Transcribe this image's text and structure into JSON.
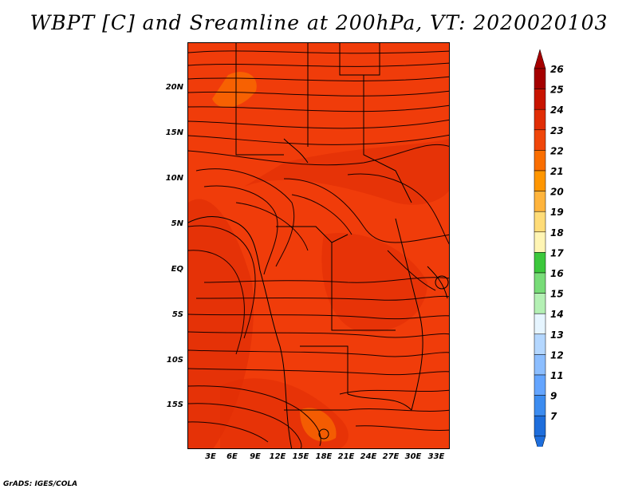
{
  "title": "WBPT [C] and Sreamline at 200hPa, VT: 2020020103",
  "credit": "GrADS: IGES/COLA",
  "map": {
    "field": "WBPT [C]",
    "overlay": "Streamline",
    "level": "200hPa",
    "valid_time": "2020020103",
    "background_color": "#f03c0a",
    "lat_labels": [
      "20N",
      "15N",
      "10N",
      "5N",
      "EQ",
      "5S",
      "10S",
      "15S"
    ],
    "lon_labels": [
      "3E",
      "6E",
      "9E",
      "12E",
      "15E",
      "18E",
      "21E",
      "24E",
      "27E",
      "30E",
      "33E"
    ]
  },
  "colorbar": {
    "labels": [
      "26",
      "25",
      "24",
      "23",
      "22",
      "21",
      "20",
      "19",
      "18",
      "17",
      "16",
      "15",
      "14",
      "13",
      "12",
      "11",
      "9",
      "7"
    ],
    "colors": [
      "#a50000",
      "#c81400",
      "#e12d05",
      "#f0460a",
      "#fa6e00",
      "#ff9600",
      "#ffb43c",
      "#ffdc78",
      "#fff5b4",
      "#3cc83c",
      "#78dc78",
      "#b4f0b4",
      "#e6f5ff",
      "#b4d7ff",
      "#8cbeff",
      "#64a5ff",
      "#3c8cf0",
      "#1e6edc"
    ],
    "top_arrow_color": "#a50000",
    "bottom_arrow_color": "#1e6edc"
  }
}
